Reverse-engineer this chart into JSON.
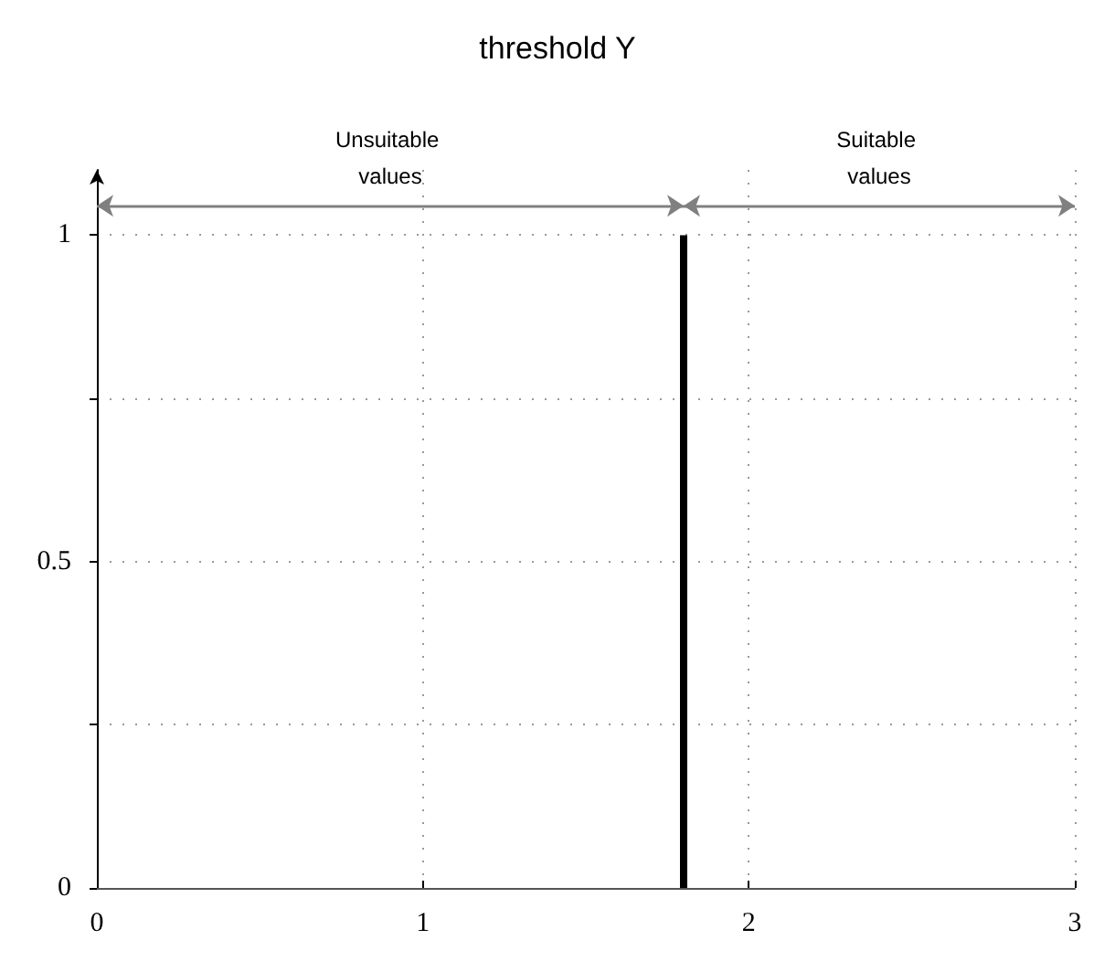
{
  "chart_data": {
    "type": "line",
    "title": "threshold Y",
    "x": [
      1.8,
      1.8
    ],
    "series": [
      {
        "color": "#000000",
        "values": [
          0,
          1
        ]
      }
    ],
    "marker": "none",
    "xlim": [
      0,
      3
    ],
    "xticks": [
      0,
      1,
      2,
      3
    ],
    "ylim": [
      0,
      1.1
    ],
    "yticks": [
      0,
      {
        "value": 0.25,
        "label": null
      },
      0.5,
      {
        "value": 0.75,
        "label": null
      },
      1
    ],
    "annotations": [
      "Unsuitable values",
      "Suitable values"
    ],
    "grid": true
  }
}
